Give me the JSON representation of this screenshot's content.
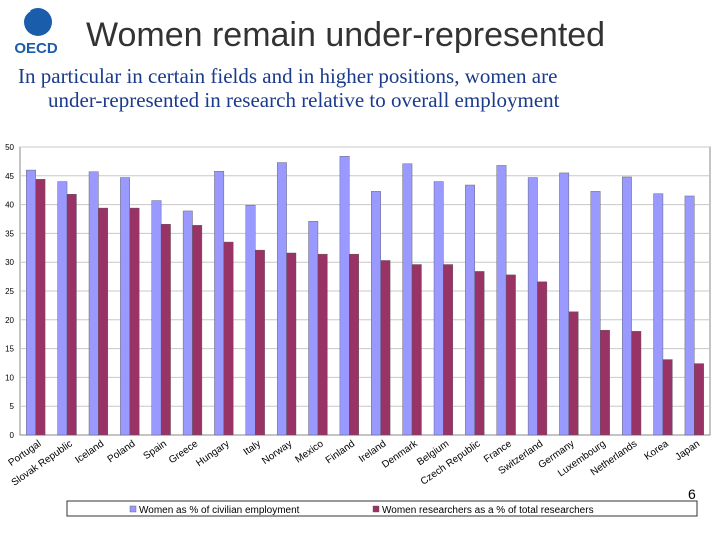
{
  "header": {
    "logo_text": "OECD",
    "title": "Women remain under-represented",
    "subtitle_line1": "In particular in certain fields and in higher positions, women are",
    "subtitle_line2": "under-represented in research relative to overall employment"
  },
  "page_number": "6",
  "colors": {
    "series1": "#9999ff",
    "series2": "#993366",
    "title": "#333333",
    "subtitle": "#1a3a8a",
    "logo": "#1a5dab"
  },
  "chart_data": {
    "type": "bar",
    "title": "",
    "xlabel": "",
    "ylabel": "",
    "ylim": [
      0,
      50
    ],
    "yticks": [
      0,
      5,
      10,
      15,
      20,
      25,
      30,
      35,
      40,
      45,
      50
    ],
    "grid": true,
    "legend_position": "bottom",
    "categories": [
      "Portugal",
      "Slovak Republic",
      "Iceland",
      "Poland",
      "Spain",
      "Greece",
      "Hungary",
      "Italy",
      "Norway",
      "Mexico",
      "Finland",
      "Ireland",
      "Denmark",
      "Belgium",
      "Czech Republic",
      "France",
      "Switzerland",
      "Germany",
      "Luxembourg",
      "Netherlands",
      "Korea",
      "Japan"
    ],
    "series": [
      {
        "name": "Women as % of civilian employment",
        "values": [
          46.0,
          44.0,
          45.7,
          44.7,
          40.7,
          38.9,
          45.8,
          39.9,
          47.3,
          37.1,
          48.4,
          42.3,
          47.1,
          44.0,
          43.4,
          46.8,
          44.7,
          45.5,
          42.3,
          44.8,
          41.9,
          41.5
        ]
      },
      {
        "name": "Women researchers as a % of total researchers",
        "values": [
          44.4,
          41.8,
          39.4,
          39.4,
          36.6,
          36.4,
          33.5,
          32.1,
          31.6,
          31.4,
          31.4,
          30.3,
          29.6,
          29.6,
          28.4,
          27.8,
          26.6,
          21.4,
          18.2,
          18.0,
          13.1,
          12.4
        ]
      }
    ]
  }
}
